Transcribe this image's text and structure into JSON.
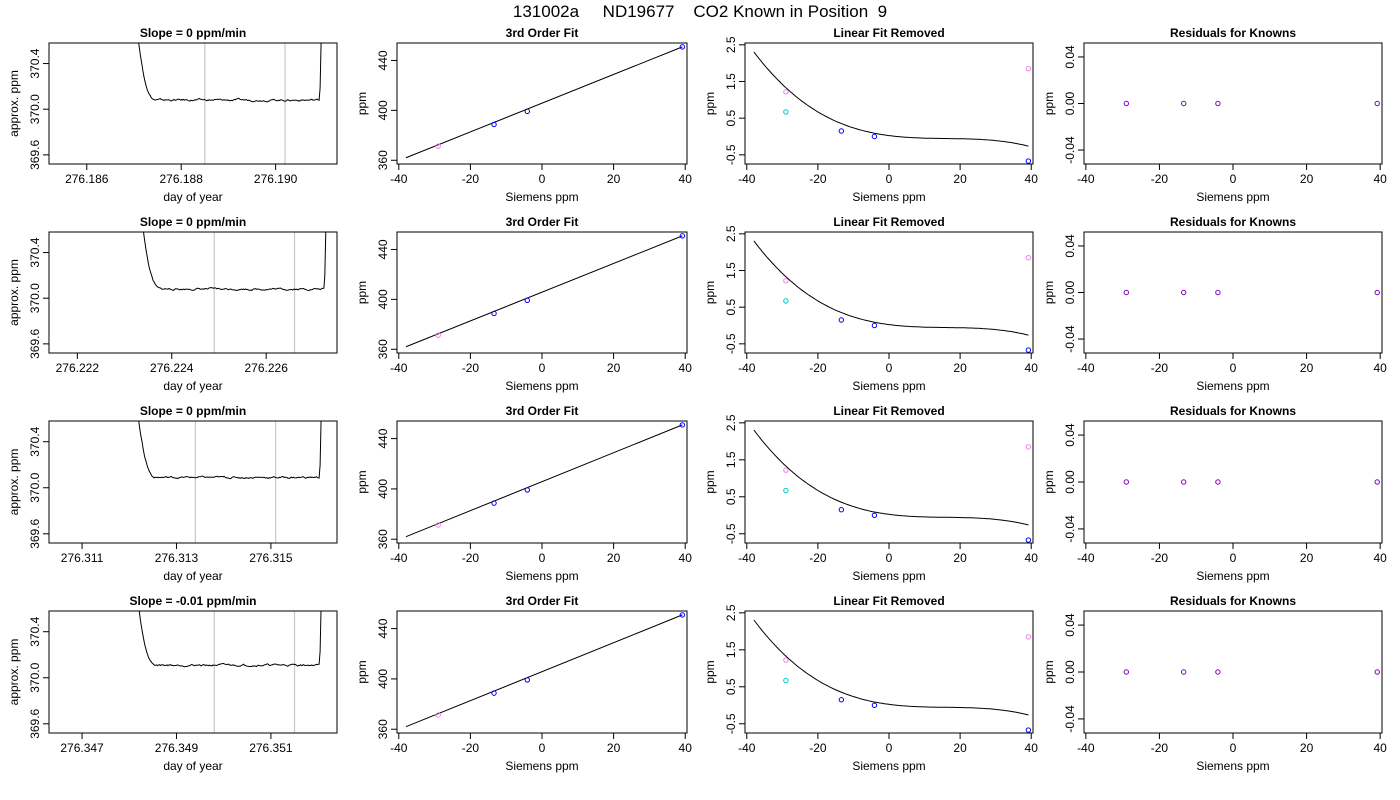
{
  "figure_title": "131002a     ND19677    CO2 Known in Position  9",
  "chart_data": [
    {
      "type": "line",
      "panel": "timeseries",
      "row": 1,
      "title": "Slope =  0  ppm/min",
      "xlabel": "day of year",
      "ylabel": "approx. ppm",
      "xticks": [
        "276.186",
        "276.188",
        "276.190"
      ],
      "xtick_values": [
        276.186,
        276.188,
        276.19
      ],
      "yticks": [
        "369.6",
        "370.0",
        "370.4"
      ],
      "ytick_values": [
        369.6,
        370.0,
        370.4
      ],
      "xlim": [
        276.1852,
        276.1913
      ],
      "ylim": [
        369.52,
        370.58
      ],
      "vlines": [
        276.1885,
        276.1902
      ],
      "baseline": 370.08,
      "curve_start": 276.1867,
      "curve_end": 276.191
    },
    {
      "type": "line",
      "panel": "timeseries",
      "row": 2,
      "title": "Slope =  0  ppm/min",
      "xlabel": "day of year",
      "ylabel": "approx. ppm",
      "xticks": [
        "276.222",
        "276.224",
        "276.226"
      ],
      "xtick_values": [
        276.222,
        276.224,
        276.226
      ],
      "yticks": [
        "369.6",
        "370.0",
        "370.4"
      ],
      "ytick_values": [
        369.6,
        370.0,
        370.4
      ],
      "xlim": [
        276.2214,
        276.2275
      ],
      "ylim": [
        369.52,
        370.58
      ],
      "vlines": [
        276.2249,
        276.2266
      ],
      "baseline": 370.08,
      "curve_start": 276.223,
      "curve_end": 276.2273
    },
    {
      "type": "line",
      "panel": "timeseries",
      "row": 3,
      "title": "Slope =  0  ppm/min",
      "xlabel": "day of year",
      "ylabel": "approx. ppm",
      "xticks": [
        "276.311",
        "276.313",
        "276.315"
      ],
      "xtick_values": [
        276.311,
        276.313,
        276.315
      ],
      "yticks": [
        "369.6",
        "370.0",
        "370.4"
      ],
      "ytick_values": [
        369.6,
        370.0,
        370.4
      ],
      "xlim": [
        276.3103,
        276.3164
      ],
      "ylim": [
        369.52,
        370.58
      ],
      "vlines": [
        276.3134,
        276.3151
      ],
      "baseline": 370.09,
      "curve_start": 276.3118,
      "curve_end": 276.3161
    },
    {
      "type": "line",
      "panel": "timeseries",
      "row": 4,
      "title": "Slope =  -0.01  ppm/min",
      "xlabel": "day of year",
      "ylabel": "approx. ppm",
      "xticks": [
        "276.347",
        "276.349",
        "276.351"
      ],
      "xtick_values": [
        276.347,
        276.349,
        276.351
      ],
      "yticks": [
        "369.6",
        "370.0",
        "370.4"
      ],
      "ytick_values": [
        369.6,
        370.0,
        370.4
      ],
      "xlim": [
        276.3463,
        276.3524
      ],
      "ylim": [
        369.52,
        370.58
      ],
      "vlines": [
        276.3498,
        276.3515
      ],
      "baseline": 370.11,
      "curve_start": 276.3478,
      "curve_end": 276.3521
    },
    {
      "type": "scatter",
      "panel": "fit",
      "row": 1,
      "title": "3rd Order Fit",
      "xlabel": "Siemens ppm",
      "ylabel": "ppm",
      "xticks": [
        "-40",
        "-20",
        "0",
        "20",
        "40"
      ],
      "xtick_values": [
        -40,
        -20,
        0,
        20,
        40
      ],
      "yticks": [
        "360",
        "400",
        "440"
      ],
      "ytick_values": [
        360,
        400,
        440
      ],
      "xlim": [
        -40.5,
        40.5
      ],
      "ylim": [
        357,
        454
      ],
      "points": [
        {
          "x": -29,
          "y": 371.3,
          "color": "#ee82ee"
        },
        {
          "x": -13.4,
          "y": 388.7,
          "color": "#0000ff"
        },
        {
          "x": -4.1,
          "y": 399.2,
          "color": "#0000ff"
        },
        {
          "x": 39.2,
          "y": 450.9,
          "color": "#0000ff"
        }
      ],
      "line": [
        [
          -38,
          362
        ],
        [
          39.2,
          450.9
        ]
      ]
    },
    {
      "type": "scatter",
      "panel": "fit",
      "row": 2,
      "title": "3rd Order Fit",
      "xlabel": "Siemens ppm",
      "ylabel": "ppm",
      "xticks": [
        "-40",
        "-20",
        "0",
        "20",
        "40"
      ],
      "xtick_values": [
        -40,
        -20,
        0,
        20,
        40
      ],
      "yticks": [
        "360",
        "400",
        "440"
      ],
      "ytick_values": [
        360,
        400,
        440
      ],
      "xlim": [
        -40.5,
        40.5
      ],
      "ylim": [
        357,
        454
      ],
      "points": [
        {
          "x": -29,
          "y": 371.3,
          "color": "#ee82ee"
        },
        {
          "x": -13.4,
          "y": 388.7,
          "color": "#0000ff"
        },
        {
          "x": -4.1,
          "y": 399.2,
          "color": "#0000ff"
        },
        {
          "x": 39.2,
          "y": 450.9,
          "color": "#0000ff"
        }
      ],
      "line": [
        [
          -38,
          362
        ],
        [
          39.2,
          450.9
        ]
      ]
    },
    {
      "type": "scatter",
      "panel": "fit",
      "row": 3,
      "title": "3rd Order Fit",
      "xlabel": "Siemens ppm",
      "ylabel": "ppm",
      "xticks": [
        "-40",
        "-20",
        "0",
        "20",
        "40"
      ],
      "xtick_values": [
        -40,
        -20,
        0,
        20,
        40
      ],
      "yticks": [
        "360",
        "400",
        "440"
      ],
      "ytick_values": [
        360,
        400,
        440
      ],
      "xlim": [
        -40.5,
        40.5
      ],
      "ylim": [
        357,
        454
      ],
      "points": [
        {
          "x": -29,
          "y": 371.3,
          "color": "#ee82ee"
        },
        {
          "x": -13.4,
          "y": 388.7,
          "color": "#0000ff"
        },
        {
          "x": -4.1,
          "y": 399.2,
          "color": "#0000ff"
        },
        {
          "x": 39.2,
          "y": 450.9,
          "color": "#0000ff"
        }
      ],
      "line": [
        [
          -38,
          362
        ],
        [
          39.2,
          450.9
        ]
      ]
    },
    {
      "type": "scatter",
      "panel": "fit",
      "row": 4,
      "title": "3rd Order Fit",
      "xlabel": "Siemens ppm",
      "ylabel": "ppm",
      "xticks": [
        "-40",
        "-20",
        "0",
        "20",
        "40"
      ],
      "xtick_values": [
        -40,
        -20,
        0,
        20,
        40
      ],
      "yticks": [
        "360",
        "400",
        "440"
      ],
      "ytick_values": [
        360,
        400,
        440
      ],
      "xlim": [
        -40.5,
        40.5
      ],
      "ylim": [
        357,
        454
      ],
      "points": [
        {
          "x": -29,
          "y": 371.3,
          "color": "#ee82ee"
        },
        {
          "x": -13.4,
          "y": 388.7,
          "color": "#0000ff"
        },
        {
          "x": -4.1,
          "y": 399.2,
          "color": "#0000ff"
        },
        {
          "x": 39.2,
          "y": 450.9,
          "color": "#0000ff"
        }
      ],
      "line": [
        [
          -38,
          362
        ],
        [
          39.2,
          450.9
        ]
      ]
    },
    {
      "type": "scatter",
      "panel": "linear-removed",
      "row": 1,
      "title": "Linear Fit Removed",
      "xlabel": "Siemens ppm",
      "ylabel": "ppm",
      "xticks": [
        "-40",
        "-20",
        "0",
        "20",
        "40"
      ],
      "xtick_values": [
        -40,
        -20,
        0,
        20,
        40
      ],
      "yticks": [
        "-0.5",
        "0.5",
        "1.5",
        "2.5"
      ],
      "ytick_values": [
        -0.5,
        0.5,
        1.5,
        2.5
      ],
      "xlim": [
        -40.5,
        40.5
      ],
      "ylim": [
        -0.75,
        2.55
      ],
      "points": [
        {
          "x": -29,
          "y": 1.22,
          "color": "#ee82ee"
        },
        {
          "x": -29,
          "y": 0.67,
          "color": "#00c8d2"
        },
        {
          "x": -13.4,
          "y": 0.15,
          "color": "#0000ff"
        },
        {
          "x": -4.1,
          "y": 0.0,
          "color": "#0000ff"
        },
        {
          "x": 39.2,
          "y": -0.67,
          "color": "#0000ff"
        },
        {
          "x": 39.2,
          "y": 1.85,
          "color": "#ee82ee"
        }
      ],
      "cubic": [
        0.025,
        -0.0125,
        0.0007,
        -1.45e-05
      ],
      "curve_from": -38,
      "curve_to": 39.2
    },
    {
      "type": "scatter",
      "panel": "linear-removed",
      "row": 2,
      "title": "Linear Fit Removed",
      "xlabel": "Siemens ppm",
      "ylabel": "ppm",
      "xticks": [
        "-40",
        "-20",
        "0",
        "20",
        "40"
      ],
      "xtick_values": [
        -40,
        -20,
        0,
        20,
        40
      ],
      "yticks": [
        "-0.5",
        "0.5",
        "1.5",
        "2.5"
      ],
      "ytick_values": [
        -0.5,
        0.5,
        1.5,
        2.5
      ],
      "xlim": [
        -40.5,
        40.5
      ],
      "ylim": [
        -0.75,
        2.55
      ],
      "points": [
        {
          "x": -29,
          "y": 1.22,
          "color": "#ee82ee"
        },
        {
          "x": -29,
          "y": 0.67,
          "color": "#00c8d2"
        },
        {
          "x": -13.4,
          "y": 0.15,
          "color": "#0000ff"
        },
        {
          "x": -4.1,
          "y": 0.0,
          "color": "#0000ff"
        },
        {
          "x": 39.2,
          "y": -0.67,
          "color": "#0000ff"
        },
        {
          "x": 39.2,
          "y": 1.85,
          "color": "#ee82ee"
        }
      ],
      "cubic": [
        0.025,
        -0.0125,
        0.0007,
        -1.45e-05
      ],
      "curve_from": -38,
      "curve_to": 39.2
    },
    {
      "type": "scatter",
      "panel": "linear-removed",
      "row": 3,
      "title": "Linear Fit Removed",
      "xlabel": "Siemens ppm",
      "ylabel": "ppm",
      "xticks": [
        "-40",
        "-20",
        "0",
        "20",
        "40"
      ],
      "xtick_values": [
        -40,
        -20,
        0,
        20,
        40
      ],
      "yticks": [
        "-0.5",
        "0.5",
        "1.5",
        "2.5"
      ],
      "ytick_values": [
        -0.5,
        0.5,
        1.5,
        2.5
      ],
      "xlim": [
        -40.5,
        40.5
      ],
      "ylim": [
        -0.75,
        2.55
      ],
      "points": [
        {
          "x": -29,
          "y": 1.22,
          "color": "#ee82ee"
        },
        {
          "x": -29,
          "y": 0.67,
          "color": "#00c8d2"
        },
        {
          "x": -13.4,
          "y": 0.15,
          "color": "#0000ff"
        },
        {
          "x": -4.1,
          "y": 0.0,
          "color": "#0000ff"
        },
        {
          "x": 39.2,
          "y": -0.67,
          "color": "#0000ff"
        },
        {
          "x": 39.2,
          "y": 1.85,
          "color": "#ee82ee"
        }
      ],
      "cubic": [
        0.025,
        -0.0125,
        0.0007,
        -1.45e-05
      ],
      "curve_from": -38,
      "curve_to": 39.2
    },
    {
      "type": "scatter",
      "panel": "linear-removed",
      "row": 4,
      "title": "Linear Fit Removed",
      "xlabel": "Siemens ppm",
      "ylabel": "ppm",
      "xticks": [
        "-40",
        "-20",
        "0",
        "20",
        "40"
      ],
      "xtick_values": [
        -40,
        -20,
        0,
        20,
        40
      ],
      "yticks": [
        "-0.5",
        "0.5",
        "1.5",
        "2.5"
      ],
      "ytick_values": [
        -0.5,
        0.5,
        1.5,
        2.5
      ],
      "xlim": [
        -40.5,
        40.5
      ],
      "ylim": [
        -0.75,
        2.55
      ],
      "points": [
        {
          "x": -29,
          "y": 1.22,
          "color": "#ee82ee"
        },
        {
          "x": -29,
          "y": 0.67,
          "color": "#00c8d2"
        },
        {
          "x": -13.4,
          "y": 0.15,
          "color": "#0000ff"
        },
        {
          "x": -4.1,
          "y": 0.0,
          "color": "#0000ff"
        },
        {
          "x": 39.2,
          "y": -0.67,
          "color": "#0000ff"
        },
        {
          "x": 39.2,
          "y": 1.85,
          "color": "#ee82ee"
        }
      ],
      "cubic": [
        0.025,
        -0.0125,
        0.0007,
        -1.45e-05
      ],
      "curve_from": -38,
      "curve_to": 39.2
    },
    {
      "type": "scatter",
      "panel": "residuals",
      "row": 1,
      "title": "Residuals for Knowns",
      "xlabel": "Siemens ppm",
      "ylabel": "ppm",
      "xticks": [
        "-40",
        "-20",
        "0",
        "20",
        "40"
      ],
      "xtick_values": [
        -40,
        -20,
        0,
        20,
        40
      ],
      "yticks": [
        "-0.04",
        "0.00",
        "0.04"
      ],
      "ytick_values": [
        -0.04,
        0.0,
        0.04
      ],
      "xlim": [
        -40.5,
        40.5
      ],
      "ylim": [
        -0.052,
        0.052
      ],
      "points": [
        {
          "x": -29,
          "y": 0,
          "color": "#8000c0"
        },
        {
          "x": -13.4,
          "y": 0,
          "color": "#8000c0"
        },
        {
          "x": -4.1,
          "y": 0,
          "color": "#8000c0"
        },
        {
          "x": 39.2,
          "y": 0,
          "color": "#8000c0"
        }
      ]
    },
    {
      "type": "scatter",
      "panel": "residuals",
      "row": 2,
      "title": "Residuals for Knowns",
      "xlabel": "Siemens ppm",
      "ylabel": "ppm",
      "xticks": [
        "-40",
        "-20",
        "0",
        "20",
        "40"
      ],
      "xtick_values": [
        -40,
        -20,
        0,
        20,
        40
      ],
      "yticks": [
        "-0.04",
        "0.00",
        "0.04"
      ],
      "ytick_values": [
        -0.04,
        0.0,
        0.04
      ],
      "xlim": [
        -40.5,
        40.5
      ],
      "ylim": [
        -0.052,
        0.052
      ],
      "points": [
        {
          "x": -29,
          "y": 0,
          "color": "#8000c0"
        },
        {
          "x": -13.4,
          "y": 0,
          "color": "#8000c0"
        },
        {
          "x": -4.1,
          "y": 0,
          "color": "#8000c0"
        },
        {
          "x": 39.2,
          "y": 0,
          "color": "#8000c0"
        }
      ]
    },
    {
      "type": "scatter",
      "panel": "residuals",
      "row": 3,
      "title": "Residuals for Knowns",
      "xlabel": "Siemens ppm",
      "ylabel": "ppm",
      "xticks": [
        "-40",
        "-20",
        "0",
        "20",
        "40"
      ],
      "xtick_values": [
        -40,
        -20,
        0,
        20,
        40
      ],
      "yticks": [
        "-0.04",
        "0.00",
        "0.04"
      ],
      "ytick_values": [
        -0.04,
        0.0,
        0.04
      ],
      "xlim": [
        -40.5,
        40.5
      ],
      "ylim": [
        -0.052,
        0.052
      ],
      "points": [
        {
          "x": -29,
          "y": 0,
          "color": "#8000c0"
        },
        {
          "x": -13.4,
          "y": 0,
          "color": "#8000c0"
        },
        {
          "x": -4.1,
          "y": 0,
          "color": "#8000c0"
        },
        {
          "x": 39.2,
          "y": 0,
          "color": "#8000c0"
        }
      ]
    },
    {
      "type": "scatter",
      "panel": "residuals",
      "row": 4,
      "title": "Residuals for Knowns",
      "xlabel": "Siemens ppm",
      "ylabel": "ppm",
      "xticks": [
        "-40",
        "-20",
        "0",
        "20",
        "40"
      ],
      "xtick_values": [
        -40,
        -20,
        0,
        20,
        40
      ],
      "yticks": [
        "-0.04",
        "0.00",
        "0.04"
      ],
      "ytick_values": [
        -0.04,
        0.0,
        0.04
      ],
      "xlim": [
        -40.5,
        40.5
      ],
      "ylim": [
        -0.052,
        0.052
      ],
      "points": [
        {
          "x": -29,
          "y": 0,
          "color": "#8000c0"
        },
        {
          "x": -13.4,
          "y": 0,
          "color": "#8000c0"
        },
        {
          "x": -4.1,
          "y": 0,
          "color": "#8000c0"
        },
        {
          "x": 39.2,
          "y": 0,
          "color": "#8000c0"
        }
      ]
    }
  ]
}
